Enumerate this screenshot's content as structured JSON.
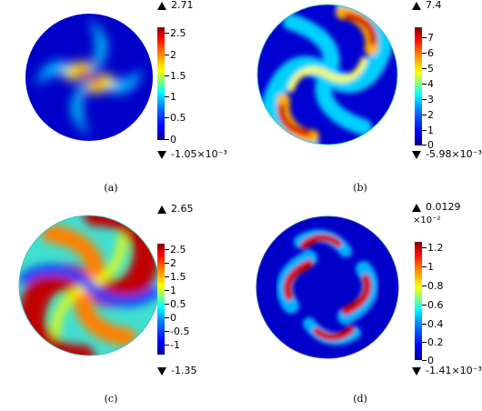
{
  "panels": [
    {
      "caption": "(a)",
      "max_label": "2.71",
      "min_label": "-1.05×10⁻³",
      "multiplier": "",
      "ticks": [
        "2.5",
        "2",
        "1.5",
        "1",
        "0.5",
        "0"
      ],
      "tick_values": [
        2.5,
        2,
        1.5,
        1,
        0.5,
        0
      ],
      "range": [
        0,
        2.71
      ]
    },
    {
      "caption": "(b)",
      "max_label": "7.4",
      "min_label": "-5.98×10⁻³",
      "multiplier": "",
      "ticks": [
        "7",
        "6",
        "5",
        "4",
        "3",
        "2",
        "1",
        "0"
      ],
      "tick_values": [
        7,
        6,
        5,
        4,
        3,
        2,
        1,
        0
      ],
      "range": [
        0,
        7.4
      ]
    },
    {
      "caption": "(c)",
      "max_label": "2.65",
      "min_label": "-1.35",
      "multiplier": "",
      "ticks": [
        "2.5",
        "2",
        "1.5",
        "1",
        "0.5",
        "0",
        "-0.5",
        "-1"
      ],
      "tick_values": [
        2.5,
        2,
        1.5,
        1,
        0.5,
        0,
        -0.5,
        -1
      ],
      "range": [
        -1.35,
        2.65
      ]
    },
    {
      "caption": "(d)",
      "max_label": "0.0129",
      "min_label": "-1.41×10⁻³",
      "multiplier": "×10⁻²",
      "ticks": [
        "1.2",
        "1",
        "0.8",
        "0.6",
        "0.4",
        "0.2",
        "0"
      ],
      "tick_values": [
        1.2,
        1,
        0.8,
        0.6,
        0.4,
        0.2,
        0
      ],
      "range": [
        0,
        1.29
      ]
    }
  ]
}
